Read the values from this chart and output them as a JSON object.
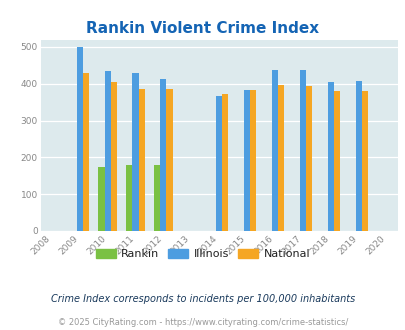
{
  "title": "Rankin Violent Crime Index",
  "title_color": "#1464b4",
  "subtitle": "Crime Index corresponds to incidents per 100,000 inhabitants",
  "footer": "© 2025 CityRating.com - https://www.cityrating.com/crime-statistics/",
  "years": [
    2009,
    2010,
    2011,
    2012,
    2014,
    2015,
    2016,
    2017,
    2018,
    2019
  ],
  "rankin": [
    0,
    175,
    180,
    180,
    0,
    0,
    0,
    0,
    0,
    0
  ],
  "illinois": [
    500,
    435,
    428,
    413,
    368,
    383,
    437,
    437,
    405,
    408
  ],
  "national": [
    430,
    405,
    387,
    387,
    372,
    383,
    397,
    394,
    379,
    379
  ],
  "rankin_color": "#7ac143",
  "illinois_color": "#4d9de0",
  "national_color": "#f5a623",
  "bg_color": "#ddeaed",
  "ylim": [
    0,
    520
  ],
  "yticks": [
    0,
    100,
    200,
    300,
    400,
    500
  ],
  "xticks": [
    2008,
    2009,
    2010,
    2011,
    2012,
    2013,
    2014,
    2015,
    2016,
    2017,
    2018,
    2019,
    2020
  ],
  "bar_width": 0.22,
  "subtitle_color": "#1a3a5c",
  "footer_color": "#999999",
  "tick_color": "#888888",
  "legend_text_color": "#222222"
}
